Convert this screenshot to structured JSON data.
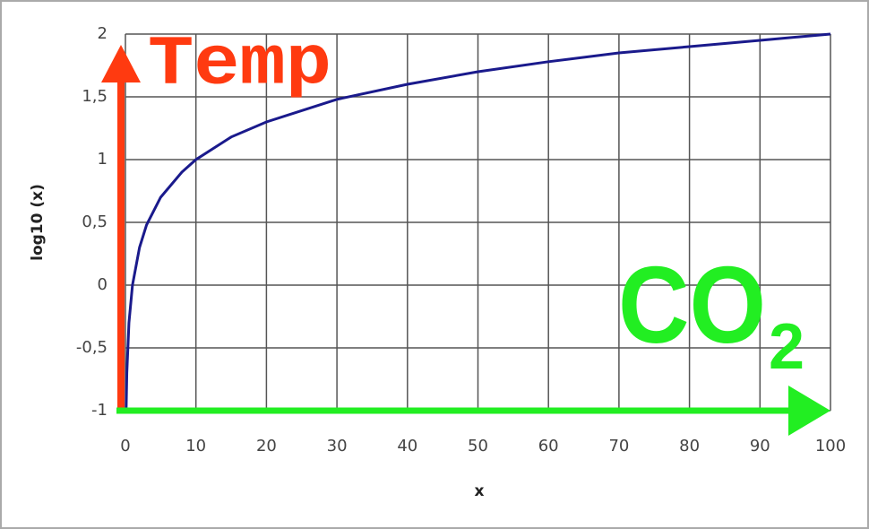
{
  "chart_data": {
    "type": "line",
    "y_label": "log10 (x)",
    "x_label": "x",
    "x": [
      0.1,
      0.2,
      0.5,
      1,
      2,
      3,
      5,
      8,
      10,
      15,
      20,
      30,
      40,
      50,
      60,
      70,
      80,
      90,
      100
    ],
    "series": [
      {
        "color": "#1a1a8c",
        "values": [
          -1,
          -0.7,
          -0.3,
          0,
          0.3,
          0.48,
          0.7,
          0.9,
          1,
          1.18,
          1.3,
          1.48,
          1.6,
          1.7,
          1.78,
          1.85,
          1.9,
          1.95,
          2
        ]
      }
    ],
    "xlim": [
      0,
      100
    ],
    "ylim": [
      -1,
      2
    ],
    "xticks": [
      0,
      10,
      20,
      30,
      40,
      50,
      60,
      70,
      80,
      90,
      100
    ],
    "yticks": [
      -1,
      {
        "value": -0.5,
        "label": "-0,5"
      },
      0,
      {
        "value": 0.5,
        "label": "0,5"
      },
      1,
      {
        "value": 1.5,
        "label": "1,5"
      },
      2
    ],
    "grid": true,
    "annotations": [
      {
        "text": "Temp",
        "color": "#ff3a10"
      },
      {
        "text": "CO",
        "sub": "2",
        "color": "#22ee22"
      }
    ]
  }
}
